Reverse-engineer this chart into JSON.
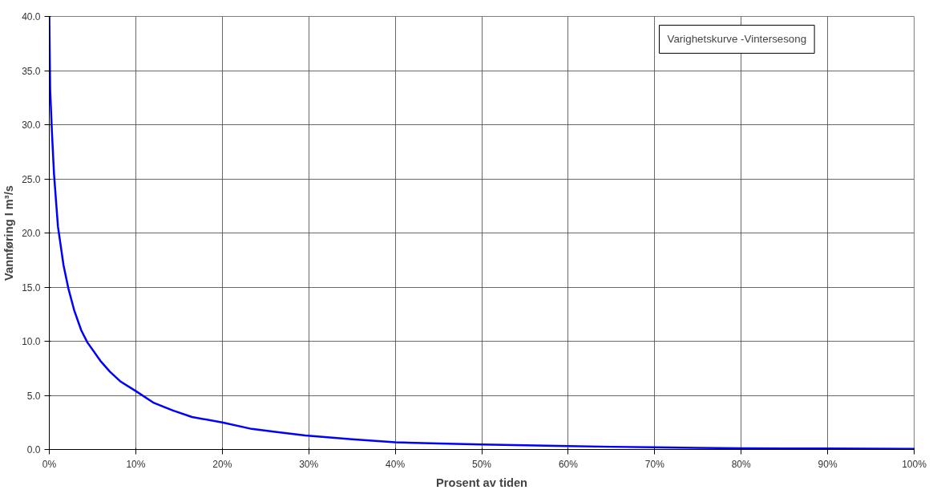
{
  "chart_data": {
    "type": "line",
    "title": "Varighetskurve -Vintersesong",
    "xlabel": "Prosent av tiden",
    "ylabel": "Vannføring I m³/s",
    "series": [
      {
        "color": "#0000ff",
        "x": [
          0,
          0.1,
          0.3,
          0.55,
          1.0,
          1.65,
          2.2,
          2.9,
          3.7,
          4.4,
          5.9,
          7.0,
          8.2,
          10,
          12.1,
          14.3,
          16.5,
          20,
          23.4,
          26.5,
          29.6,
          35,
          40,
          45,
          50,
          55,
          60,
          65,
          70,
          75,
          80,
          85,
          90,
          95,
          100
        ],
        "values": [
          40,
          33.3,
          29.4,
          25.4,
          20.6,
          17,
          14.9,
          12.8,
          11,
          9.9,
          8.2,
          7.2,
          6.3,
          5.4,
          4.3,
          3.6,
          3.0,
          2.5,
          1.9,
          1.6,
          1.3,
          0.95,
          0.67,
          0.55,
          0.47,
          0.38,
          0.31,
          0.25,
          0.2,
          0.15,
          0.12,
          0.1,
          0.09,
          0.08,
          0.06
        ]
      }
    ],
    "xlim": [
      0,
      100
    ],
    "ylim": [
      0,
      40
    ],
    "xticks": [
      {
        "value": 0,
        "label": "0%"
      },
      {
        "value": 10,
        "label": "10%"
      },
      {
        "value": 20,
        "label": "20%"
      },
      {
        "value": 30,
        "label": "30%"
      },
      {
        "value": 40,
        "label": "40%"
      },
      {
        "value": 50,
        "label": "50%"
      },
      {
        "value": 60,
        "label": "60%"
      },
      {
        "value": 70,
        "label": "70%"
      },
      {
        "value": 80,
        "label": "80%"
      },
      {
        "value": 90,
        "label": "90%"
      },
      {
        "value": 100,
        "label": "100%"
      }
    ],
    "yticks": [
      {
        "value": 0,
        "label": "0.0"
      },
      {
        "value": 5,
        "label": "5.0"
      },
      {
        "value": 10,
        "label": "10.0"
      },
      {
        "value": 15,
        "label": "15.0"
      },
      {
        "value": 20,
        "label": "20.0"
      },
      {
        "value": 25,
        "label": "25.0"
      },
      {
        "value": 30,
        "label": "30.0"
      },
      {
        "value": 35,
        "label": "35.0"
      },
      {
        "value": 40,
        "label": "40.0"
      }
    ],
    "grid": true,
    "marker": "none",
    "line_style": "solid"
  }
}
